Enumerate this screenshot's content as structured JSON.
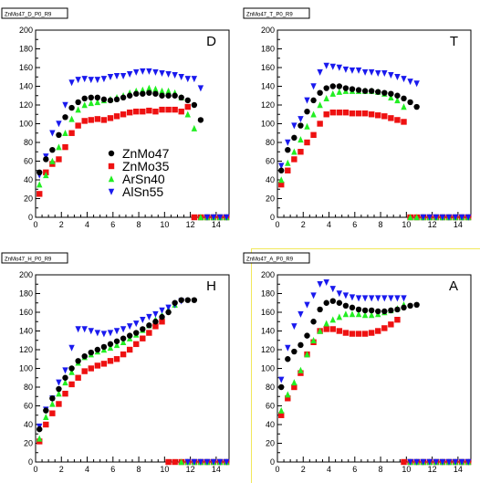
{
  "colors": {
    "ZnMo47": "#000000",
    "ZnMo35": "#ee1111",
    "ArSn40": "#22ee22",
    "AlSn55": "#1a1aee",
    "highlight": "#f2e85a"
  },
  "legend": [
    {
      "series": "ZnMo47",
      "label": "ZnMo47",
      "marker": "circle"
    },
    {
      "series": "ZnMo35",
      "label": "ZnMo35",
      "marker": "square"
    },
    {
      "series": "ArSn40",
      "label": "ArSn40",
      "marker": "triangle-up"
    },
    {
      "series": "AlSn55",
      "label": "AlSn55",
      "marker": "triangle-down"
    }
  ],
  "chart_data": [
    {
      "type": "scatter",
      "title": "ZnMo47_D_P0_R9",
      "corner_label": "D",
      "xlim": [
        0,
        15
      ],
      "ylim": [
        0,
        200
      ],
      "xticks": [
        0,
        2,
        4,
        6,
        8,
        10,
        12,
        14
      ],
      "yticks": [
        0,
        20,
        40,
        60,
        80,
        100,
        120,
        140,
        160,
        180,
        200
      ],
      "series": [
        {
          "name": "ZnMo47",
          "x": [
            0.3,
            0.8,
            1.3,
            1.8,
            2.3,
            2.8,
            3.3,
            3.8,
            4.3,
            4.8,
            5.3,
            5.8,
            6.3,
            6.8,
            7.3,
            7.8,
            8.3,
            8.8,
            9.3,
            9.8,
            10.3,
            10.8,
            11.3,
            11.8,
            12.3,
            12.8
          ],
          "y": [
            48,
            62,
            72,
            88,
            107,
            117,
            123,
            127,
            128,
            128,
            126,
            125,
            126,
            128,
            130,
            132,
            132,
            133,
            132,
            130,
            130,
            130,
            128,
            125,
            120,
            104
          ]
        },
        {
          "name": "ZnMo35",
          "x": [
            0.3,
            0.8,
            1.3,
            1.8,
            2.3,
            2.8,
            3.3,
            3.8,
            4.3,
            4.8,
            5.3,
            5.8,
            6.3,
            6.8,
            7.3,
            7.8,
            8.3,
            8.8,
            9.3,
            9.8,
            10.3,
            10.8,
            11.3,
            11.8,
            12.3,
            12.8,
            13.3,
            13.8,
            14.3,
            14.8
          ],
          "y": [
            25,
            48,
            57,
            62,
            75,
            90,
            98,
            103,
            104,
            105,
            104,
            106,
            108,
            110,
            112,
            113,
            113,
            114,
            113,
            115,
            115,
            115,
            113,
            118,
            0,
            0,
            0,
            0,
            0,
            0
          ]
        },
        {
          "name": "ArSn40",
          "x": [
            0.3,
            0.8,
            1.3,
            1.8,
            2.3,
            2.8,
            3.3,
            3.8,
            4.3,
            4.8,
            5.3,
            5.8,
            6.3,
            6.8,
            7.3,
            7.8,
            8.3,
            8.8,
            9.3,
            9.8,
            10.3,
            10.8,
            11.3,
            11.8,
            12.3,
            12.8,
            13.3,
            13.8,
            14.3,
            14.8
          ],
          "y": [
            35,
            45,
            60,
            75,
            90,
            105,
            115,
            120,
            122,
            123,
            125,
            126,
            128,
            130,
            133,
            135,
            136,
            138,
            137,
            135,
            135,
            133,
            128,
            110,
            95,
            0,
            0,
            0,
            0,
            0
          ]
        },
        {
          "name": "AlSn55",
          "x": [
            0.3,
            0.8,
            1.3,
            1.8,
            2.3,
            2.8,
            3.3,
            3.8,
            4.3,
            4.8,
            5.3,
            5.8,
            6.3,
            6.8,
            7.3,
            7.8,
            8.3,
            8.8,
            9.3,
            9.8,
            10.3,
            10.8,
            11.3,
            11.8,
            12.3,
            12.8,
            13.3,
            13.8,
            14.3,
            14.8
          ],
          "y": [
            45,
            65,
            90,
            100,
            120,
            144,
            147,
            148,
            147,
            147,
            148,
            150,
            151,
            151,
            153,
            155,
            156,
            156,
            155,
            154,
            153,
            152,
            150,
            148,
            148,
            138,
            0,
            0,
            0,
            0
          ]
        }
      ]
    },
    {
      "type": "scatter",
      "title": "ZnMo47_T_P0_R9",
      "corner_label": "T",
      "xlim": [
        0,
        15
      ],
      "ylim": [
        0,
        200
      ],
      "xticks": [
        0,
        2,
        4,
        6,
        8,
        10,
        12,
        14
      ],
      "yticks": [
        0,
        20,
        40,
        60,
        80,
        100,
        120,
        140,
        160,
        180,
        200
      ],
      "series": [
        {
          "name": "ZnMo47",
          "x": [
            0.3,
            0.8,
            1.3,
            1.8,
            2.3,
            2.8,
            3.3,
            3.8,
            4.3,
            4.8,
            5.3,
            5.8,
            6.3,
            6.8,
            7.3,
            7.8,
            8.3,
            8.8,
            9.3,
            9.8,
            10.3,
            10.8
          ],
          "y": [
            50,
            72,
            85,
            98,
            113,
            125,
            133,
            138,
            140,
            140,
            138,
            137,
            136,
            135,
            135,
            134,
            133,
            132,
            130,
            127,
            123,
            118
          ]
        },
        {
          "name": "ZnMo35",
          "x": [
            0.3,
            0.8,
            1.3,
            1.8,
            2.3,
            2.8,
            3.3,
            3.8,
            4.3,
            4.8,
            5.3,
            5.8,
            6.3,
            6.8,
            7.3,
            7.8,
            8.3,
            8.8,
            9.3,
            9.8,
            10.3,
            10.8,
            11.3,
            11.8,
            12.3,
            12.8,
            13.3,
            13.8,
            14.3,
            14.8
          ],
          "y": [
            35,
            50,
            62,
            70,
            80,
            88,
            100,
            110,
            112,
            112,
            112,
            111,
            111,
            111,
            110,
            109,
            108,
            106,
            104,
            102,
            0,
            0,
            0,
            0,
            0,
            0,
            0,
            0,
            0,
            0
          ]
        },
        {
          "name": "ArSn40",
          "x": [
            0.3,
            0.8,
            1.3,
            1.8,
            2.3,
            2.8,
            3.3,
            3.8,
            4.3,
            4.8,
            5.3,
            5.8,
            6.3,
            6.8,
            7.3,
            7.8,
            8.3,
            8.8,
            9.3,
            9.8,
            10.3,
            10.8,
            11.3,
            11.8,
            12.3,
            12.8,
            13.3,
            13.8,
            14.3,
            14.8
          ],
          "y": [
            40,
            58,
            70,
            83,
            97,
            110,
            120,
            127,
            132,
            134,
            135,
            135,
            135,
            135,
            135,
            134,
            132,
            128,
            125,
            118,
            0,
            0,
            0,
            0,
            0,
            0,
            0,
            0,
            0,
            0
          ]
        },
        {
          "name": "AlSn55",
          "x": [
            0.3,
            0.8,
            1.3,
            1.8,
            2.3,
            2.8,
            3.3,
            3.8,
            4.3,
            4.8,
            5.3,
            5.8,
            6.3,
            6.8,
            7.3,
            7.8,
            8.3,
            8.8,
            9.3,
            9.8,
            10.3,
            10.8,
            11.3,
            11.8,
            12.3,
            12.8,
            13.3,
            13.8,
            14.3,
            14.8
          ],
          "y": [
            55,
            80,
            98,
            105,
            125,
            140,
            155,
            162,
            161,
            160,
            158,
            157,
            157,
            155,
            155,
            154,
            154,
            152,
            150,
            148,
            145,
            143,
            0,
            0,
            0,
            0,
            0,
            0,
            0,
            0
          ]
        }
      ]
    },
    {
      "type": "scatter",
      "title": "ZnMo47_H_P0_R9",
      "corner_label": "H",
      "xlim": [
        0,
        15
      ],
      "ylim": [
        0,
        200
      ],
      "xticks": [
        0,
        2,
        4,
        6,
        8,
        10,
        12,
        14
      ],
      "yticks": [
        0,
        20,
        40,
        60,
        80,
        100,
        120,
        140,
        160,
        180,
        200
      ],
      "series": [
        {
          "name": "ZnMo47",
          "x": [
            0.3,
            0.8,
            1.3,
            1.8,
            2.3,
            2.8,
            3.3,
            3.8,
            4.3,
            4.8,
            5.3,
            5.8,
            6.3,
            6.8,
            7.3,
            7.8,
            8.3,
            8.8,
            9.3,
            9.8,
            10.3,
            10.8,
            11.3,
            11.8,
            12.3
          ],
          "y": [
            35,
            55,
            68,
            78,
            90,
            100,
            108,
            113,
            117,
            120,
            123,
            126,
            129,
            132,
            135,
            138,
            142,
            146,
            150,
            155,
            160,
            170,
            173,
            173,
            173
          ]
        },
        {
          "name": "ZnMo35",
          "x": [
            0.3,
            0.8,
            1.3,
            1.8,
            2.3,
            2.8,
            3.3,
            3.8,
            4.3,
            4.8,
            5.3,
            5.8,
            6.3,
            6.8,
            7.3,
            7.8,
            8.3,
            8.8,
            9.3,
            9.8,
            10.3,
            10.8,
            11.3,
            11.8,
            12.3,
            12.8,
            13.3,
            13.8,
            14.3,
            14.8
          ],
          "y": [
            22,
            40,
            52,
            62,
            73,
            83,
            90,
            97,
            100,
            103,
            105,
            108,
            110,
            115,
            120,
            126,
            132,
            138,
            145,
            150,
            0,
            0,
            0,
            0,
            0,
            0,
            0,
            0,
            0,
            0
          ]
        },
        {
          "name": "ArSn40",
          "x": [
            0.3,
            0.8,
            1.3,
            1.8,
            2.3,
            2.8,
            3.3,
            3.8,
            4.3,
            4.8,
            5.3,
            5.8,
            6.3,
            6.8,
            7.3,
            7.8,
            8.3,
            8.8,
            9.3,
            9.8,
            10.3,
            10.8,
            11.3,
            11.8,
            12.3,
            12.8,
            13.3,
            13.8,
            14.3,
            14.8
          ],
          "y": [
            25,
            48,
            62,
            73,
            85,
            96,
            106,
            112,
            115,
            118,
            120,
            122,
            125,
            128,
            132,
            136,
            141,
            146,
            152,
            157,
            163,
            168,
            0,
            0,
            0,
            0,
            0,
            0,
            0,
            0
          ]
        },
        {
          "name": "AlSn55",
          "x": [
            0.3,
            0.8,
            1.3,
            1.8,
            2.3,
            2.8,
            3.3,
            3.8,
            4.3,
            4.8,
            5.3,
            5.8,
            6.3,
            6.8,
            7.3,
            7.8,
            8.3,
            8.8,
            9.3,
            9.8,
            10.3,
            10.8,
            11.3,
            11.8,
            12.3,
            12.8,
            13.3,
            13.8,
            14.3,
            14.8
          ],
          "y": [
            38,
            56,
            68,
            85,
            98,
            122,
            142,
            142,
            140,
            138,
            137,
            138,
            140,
            142,
            145,
            148,
            152,
            155,
            158,
            162,
            165,
            168,
            172,
            0,
            0,
            0,
            0,
            0,
            0,
            0
          ]
        }
      ]
    },
    {
      "type": "scatter",
      "title": "ZnMo47_A_P0_R9",
      "corner_label": "A",
      "xlim": [
        0,
        15
      ],
      "ylim": [
        0,
        200
      ],
      "xticks": [
        0,
        2,
        4,
        6,
        8,
        10,
        12,
        14
      ],
      "yticks": [
        0,
        20,
        40,
        60,
        80,
        100,
        120,
        140,
        160,
        180,
        200
      ],
      "series": [
        {
          "name": "ZnMo47",
          "x": [
            0.3,
            0.8,
            1.3,
            1.8,
            2.3,
            2.8,
            3.3,
            3.8,
            4.3,
            4.8,
            5.3,
            5.8,
            6.3,
            6.8,
            7.3,
            7.8,
            8.3,
            8.8,
            9.3,
            9.8,
            10.3,
            10.8
          ],
          "y": [
            80,
            110,
            118,
            125,
            135,
            150,
            163,
            170,
            172,
            170,
            167,
            165,
            163,
            162,
            162,
            161,
            161,
            162,
            163,
            165,
            167,
            168
          ]
        },
        {
          "name": "ZnMo35",
          "x": [
            0.3,
            0.8,
            1.3,
            1.8,
            2.3,
            2.8,
            3.3,
            3.8,
            4.3,
            4.8,
            5.3,
            5.8,
            6.3,
            6.8,
            7.3,
            7.8,
            8.3,
            8.8,
            9.3,
            9.8,
            10.3,
            10.8,
            11.3,
            11.8,
            12.3,
            12.8,
            13.3,
            13.8,
            14.3,
            14.8
          ],
          "y": [
            50,
            68,
            80,
            95,
            115,
            128,
            140,
            142,
            142,
            140,
            138,
            137,
            137,
            137,
            138,
            140,
            143,
            147,
            152,
            0,
            0,
            0,
            0,
            0,
            0,
            0,
            0,
            0,
            0,
            0
          ]
        },
        {
          "name": "ArSn40",
          "x": [
            0.3,
            0.8,
            1.3,
            1.8,
            2.3,
            2.8,
            3.3,
            3.8,
            4.3,
            4.8,
            5.3,
            5.8,
            6.3,
            6.8,
            7.3,
            7.8,
            8.3,
            8.8,
            9.3,
            9.8,
            10.3,
            10.8,
            11.3,
            11.8,
            12.3,
            12.8,
            13.3,
            13.8,
            14.3,
            14.8
          ],
          "y": [
            55,
            72,
            85,
            98,
            115,
            130,
            140,
            148,
            152,
            155,
            158,
            158,
            158,
            157,
            157,
            158,
            160,
            162,
            164,
            168,
            0,
            0,
            0,
            0,
            0,
            0,
            0,
            0,
            0,
            0
          ]
        },
        {
          "name": "AlSn55",
          "x": [
            0.3,
            0.8,
            1.3,
            1.8,
            2.3,
            2.8,
            3.3,
            3.8,
            4.3,
            4.8,
            5.3,
            5.8,
            6.3,
            6.8,
            7.3,
            7.8,
            8.3,
            8.8,
            9.3,
            9.8,
            10.3,
            10.8,
            11.3,
            11.8,
            12.3,
            12.8,
            13.3,
            13.8,
            14.3,
            14.8
          ],
          "y": [
            88,
            122,
            145,
            158,
            168,
            178,
            190,
            192,
            185,
            180,
            178,
            176,
            175,
            175,
            175,
            175,
            175,
            175,
            175,
            175,
            0,
            0,
            0,
            0,
            0,
            0,
            0,
            0,
            0,
            0
          ]
        }
      ]
    }
  ]
}
